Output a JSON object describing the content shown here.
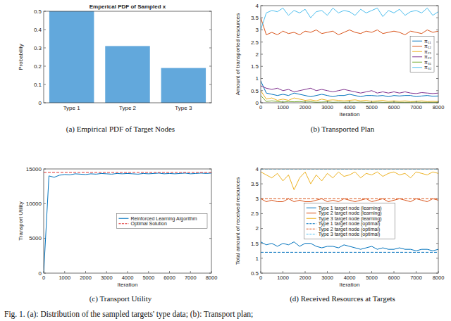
{
  "chart_data": [
    {
      "type": "bar",
      "title": "Emperical PDF of Sampled x",
      "y_label": "Probability",
      "categories": [
        "Type 1",
        "Type 2",
        "Type 3"
      ],
      "values": [
        0.5,
        0.31,
        0.19
      ],
      "color": "#62a8dc",
      "ylim": [
        0,
        0.5
      ],
      "yticks": [
        0,
        0.1,
        0.2,
        0.3,
        0.4,
        0.5
      ],
      "grid": false,
      "caption": "(a)  Empirical PDF of Target Nodes"
    },
    {
      "type": "line",
      "x_label": "Iteration",
      "y_label": "Amount of transported resources",
      "x": [
        0,
        250,
        500,
        750,
        1000,
        1250,
        1500,
        1750,
        2000,
        2250,
        2500,
        2750,
        3000,
        3250,
        3500,
        3750,
        4000,
        4250,
        4500,
        4750,
        5000,
        5250,
        5500,
        5750,
        6000,
        6250,
        6500,
        6750,
        7000,
        7250,
        7500,
        7750,
        8000
      ],
      "xlim": [
        0,
        8000
      ],
      "xticks": [
        0,
        1000,
        2000,
        3000,
        4000,
        5000,
        6000,
        7000,
        8000
      ],
      "ylim": [
        0,
        4
      ],
      "yticks": [
        0,
        0.5,
        1,
        1.5,
        2,
        2.5,
        3,
        3.5,
        4
      ],
      "grid": false,
      "legend": "right",
      "caption": "(b)  Transported Plan",
      "series": [
        {
          "name": "π₁₁",
          "color": "#0072bd",
          "values": [
            0.9,
            0.4,
            0.35,
            0.3,
            0.35,
            0.3,
            0.4,
            0.35,
            0.3,
            0.25,
            0.3,
            0.35,
            0.3,
            0.25,
            0.3,
            0.3,
            0.35,
            0.3,
            0.25,
            0.3,
            0.3,
            0.28,
            0.3,
            0.25,
            0.3,
            0.28,
            0.3,
            0.3,
            0.25,
            0.28,
            0.3,
            0.27,
            0.28
          ]
        },
        {
          "name": "π₁₂",
          "color": "#d95319",
          "values": [
            3.5,
            2.8,
            2.9,
            2.8,
            2.95,
            2.85,
            2.9,
            2.8,
            2.95,
            2.9,
            3.0,
            2.85,
            2.9,
            2.95,
            2.8,
            2.9,
            3.0,
            2.9,
            2.85,
            2.95,
            2.9,
            3.0,
            2.85,
            2.9,
            2.95,
            2.9,
            2.8,
            2.95,
            2.9,
            2.85,
            3.0,
            2.9,
            2.95
          ]
        },
        {
          "name": "π₂₁",
          "color": "#edb120",
          "values": [
            0.5,
            0.15,
            0.2,
            0.1,
            0.15,
            0.1,
            0.2,
            0.15,
            0.1,
            0.12,
            0.08,
            0.15,
            0.1,
            0.12,
            0.1,
            0.08,
            0.1,
            0.12,
            0.08,
            0.1,
            0.06,
            0.08,
            0.1,
            0.06,
            0.08,
            0.06,
            0.08,
            0.05,
            0.06,
            0.08,
            0.05,
            0.06,
            0.05
          ]
        },
        {
          "name": "π₂₂",
          "color": "#7e2f8e",
          "values": [
            0.7,
            0.6,
            0.55,
            0.6,
            0.5,
            0.55,
            0.45,
            0.5,
            0.55,
            0.6,
            0.5,
            0.55,
            0.5,
            0.45,
            0.5,
            0.55,
            0.5,
            0.45,
            0.4,
            0.45,
            0.5,
            0.4,
            0.45,
            0.4,
            0.45,
            0.4,
            0.45,
            0.4,
            0.38,
            0.42,
            0.4,
            0.38,
            0.4
          ]
        },
        {
          "name": "π₃₁",
          "color": "#77ac30",
          "values": [
            0.3,
            0.05,
            0.08,
            0.05,
            0.03,
            0.05,
            0.04,
            0.05,
            0.03,
            0.04,
            0.02,
            0.03,
            0.04,
            0.02,
            0.03,
            0.02,
            0.03,
            0.02,
            0.03,
            0.02,
            0.02,
            0.03,
            0.02,
            0.02,
            0.03,
            0.02,
            0.02,
            0.02,
            0.03,
            0.02,
            0.02,
            0.02,
            0.02
          ]
        },
        {
          "name": "π₃₂",
          "color": "#4dbeee",
          "values": [
            3.0,
            3.7,
            3.8,
            3.75,
            3.9,
            3.6,
            3.8,
            3.7,
            3.85,
            3.5,
            3.75,
            3.8,
            3.6,
            3.9,
            3.7,
            3.8,
            3.75,
            3.6,
            3.85,
            3.7,
            3.8,
            3.9,
            3.55,
            3.8,
            3.7,
            3.85,
            3.6,
            3.75,
            3.8,
            3.7,
            3.9,
            3.6,
            3.75
          ]
        }
      ]
    },
    {
      "type": "line",
      "x_label": "Iteration",
      "y_label": "Transport Utility",
      "x": [
        0,
        250,
        500,
        750,
        1000,
        1250,
        1500,
        1750,
        2000,
        2250,
        2500,
        2750,
        3000,
        3250,
        3500,
        3750,
        4000,
        4250,
        4500,
        4750,
        5000,
        5250,
        5500,
        5750,
        6000,
        6250,
        6500,
        6750,
        7000,
        7250,
        7500,
        7750,
        8000
      ],
      "xlim": [
        0,
        8000
      ],
      "xticks": [
        0,
        1000,
        2000,
        3000,
        4000,
        5000,
        6000,
        7000,
        8000
      ],
      "ylim": [
        0,
        15000
      ],
      "yticks": [
        0,
        5000,
        10000,
        15000
      ],
      "grid": false,
      "legend": "right",
      "caption": "(c)  Transport Utility",
      "series": [
        {
          "name": "Reinforced Learning Algorithm",
          "color": "#0072bd",
          "line_style": "solid",
          "values": [
            0,
            14000,
            13800,
            14100,
            14200,
            14150,
            14300,
            14250,
            14200,
            14300,
            14250,
            14350,
            14300,
            14250,
            14350,
            14300,
            14350,
            14300,
            14250,
            14350,
            14300,
            14350,
            14400,
            14300,
            14350,
            14300,
            14350,
            14400,
            14300,
            14350,
            14400,
            14350,
            14400
          ]
        },
        {
          "name": "Optimal Solution",
          "color": "#e03030",
          "line_style": "dashed",
          "x": [
            0,
            8000
          ],
          "values": [
            14500,
            14500
          ]
        }
      ]
    },
    {
      "type": "line",
      "x_label": "Iteration",
      "y_label": "Total amount of received resources",
      "x": [
        0,
        250,
        500,
        750,
        1000,
        1250,
        1500,
        1750,
        2000,
        2250,
        2500,
        2750,
        3000,
        3250,
        3500,
        3750,
        4000,
        4250,
        4500,
        4750,
        5000,
        5250,
        5500,
        5750,
        6000,
        6250,
        6500,
        6750,
        7000,
        7250,
        7500,
        7750,
        8000
      ],
      "xlim": [
        0,
        8000
      ],
      "xticks": [
        0,
        1000,
        2000,
        3000,
        4000,
        5000,
        6000,
        7000,
        8000
      ],
      "ylim": [
        0.5,
        4
      ],
      "yticks": [
        0.5,
        1,
        1.5,
        2,
        2.5,
        3,
        3.5,
        4
      ],
      "grid": false,
      "legend": "center",
      "caption": "(d)  Received Resources at Targets",
      "series": [
        {
          "name": "Type 1 target node (learning)",
          "color": "#0072bd",
          "line_style": "solid",
          "values": [
            1.55,
            1.45,
            1.5,
            1.4,
            1.5,
            1.45,
            1.55,
            1.4,
            1.5,
            1.5,
            1.4,
            1.35,
            1.4,
            1.4,
            1.35,
            1.45,
            1.4,
            1.35,
            1.3,
            1.35,
            1.4,
            1.3,
            1.35,
            1.3,
            1.3,
            1.35,
            1.3,
            1.3,
            1.25,
            1.3,
            1.3,
            1.25,
            1.3
          ]
        },
        {
          "name": "Type 2 target node (learning)",
          "color": "#d95319",
          "line_style": "solid",
          "values": [
            3.0,
            2.9,
            2.95,
            2.9,
            2.9,
            3.0,
            2.9,
            2.95,
            2.9,
            2.9,
            2.95,
            3.0,
            2.9,
            2.95,
            2.9,
            3.0,
            2.95,
            2.9,
            2.95,
            3.0,
            2.9,
            2.95,
            3.0,
            2.9,
            2.95,
            3.0,
            2.95,
            2.9,
            3.0,
            2.95,
            2.9,
            3.0,
            2.95
          ]
        },
        {
          "name": "Type 3 target node (learning)",
          "color": "#edb120",
          "line_style": "solid",
          "values": [
            3.9,
            3.8,
            3.7,
            3.85,
            3.6,
            3.8,
            3.3,
            3.7,
            3.9,
            3.5,
            3.8,
            3.6,
            3.85,
            3.7,
            3.9,
            3.75,
            3.8,
            3.9,
            3.7,
            3.85,
            3.8,
            3.9,
            3.75,
            3.85,
            3.9,
            3.8,
            3.85,
            3.7,
            3.9,
            3.85,
            3.8,
            3.9,
            3.85
          ]
        },
        {
          "name": "Type 1 target node (optimal)",
          "color": "#0072bd",
          "line_style": "dashed",
          "x": [
            0,
            8000
          ],
          "values": [
            1.2,
            1.2
          ]
        },
        {
          "name": "Type 2 target node (optimal)",
          "color": "#d95319",
          "line_style": "dashed",
          "x": [
            0,
            8000
          ],
          "values": [
            3,
            3
          ]
        },
        {
          "name": "Type 3 target node (optimal)",
          "color": "#4dbeee",
          "line_style": "dashed",
          "x": [
            0,
            8000
          ],
          "values": [
            4,
            4
          ]
        }
      ]
    }
  ],
  "figure_caption": "Fig. 1.  (a): Distribution of the sampled targets' type data; (b): Transport plan;"
}
